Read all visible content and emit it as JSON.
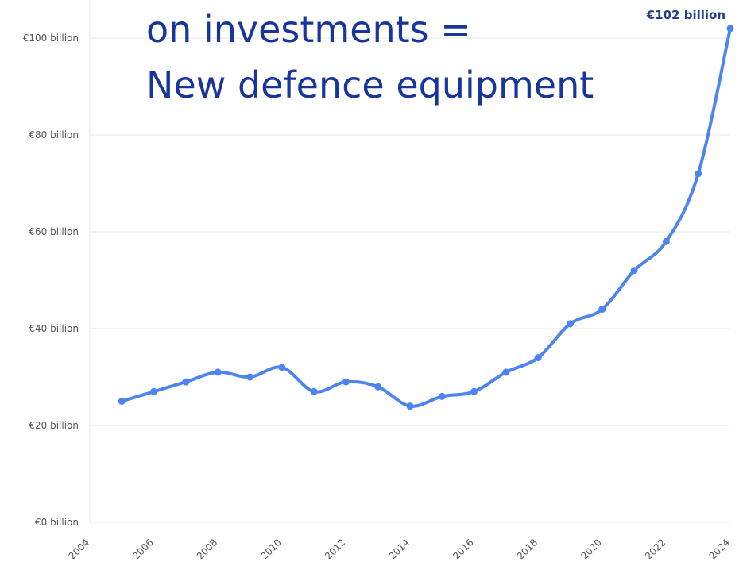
{
  "overlay_text": {
    "line1": "on investments =",
    "line2": "New defence equipment"
  },
  "colors": {
    "line": "#4d84f0",
    "title": "#17359b",
    "label": "#1f3f8f",
    "grid": "#e9e9e9",
    "axis_text": "#555555"
  },
  "chart_data": {
    "type": "line",
    "x": [
      2005,
      2006,
      2007,
      2008,
      2009,
      2010,
      2011,
      2012,
      2013,
      2014,
      2015,
      2016,
      2017,
      2018,
      2019,
      2020,
      2021,
      2022,
      2023,
      2024
    ],
    "series": [
      {
        "values": [
          25,
          27,
          29,
          31,
          30,
          32,
          27,
          29,
          28,
          24,
          26,
          27,
          31,
          34,
          41,
          44,
          52,
          58,
          72,
          102
        ]
      }
    ],
    "xlim": [
      2004,
      2024
    ],
    "ylim": [
      0,
      100
    ],
    "x_ticks": [
      "2004",
      "2006",
      "2008",
      "2010",
      "2012",
      "2014",
      "2016",
      "2018",
      "2020",
      "2022",
      "2024"
    ],
    "y_ticks": [
      "€0 billion",
      "€20 billion",
      "€40 billion",
      "€60 billion",
      "€80 billion",
      "€100 billion"
    ],
    "y_tick_values": [
      0,
      20,
      40,
      60,
      80,
      100
    ],
    "grid": true,
    "annotation": {
      "x": 2024,
      "y": 102,
      "text": "€102 billion"
    }
  }
}
